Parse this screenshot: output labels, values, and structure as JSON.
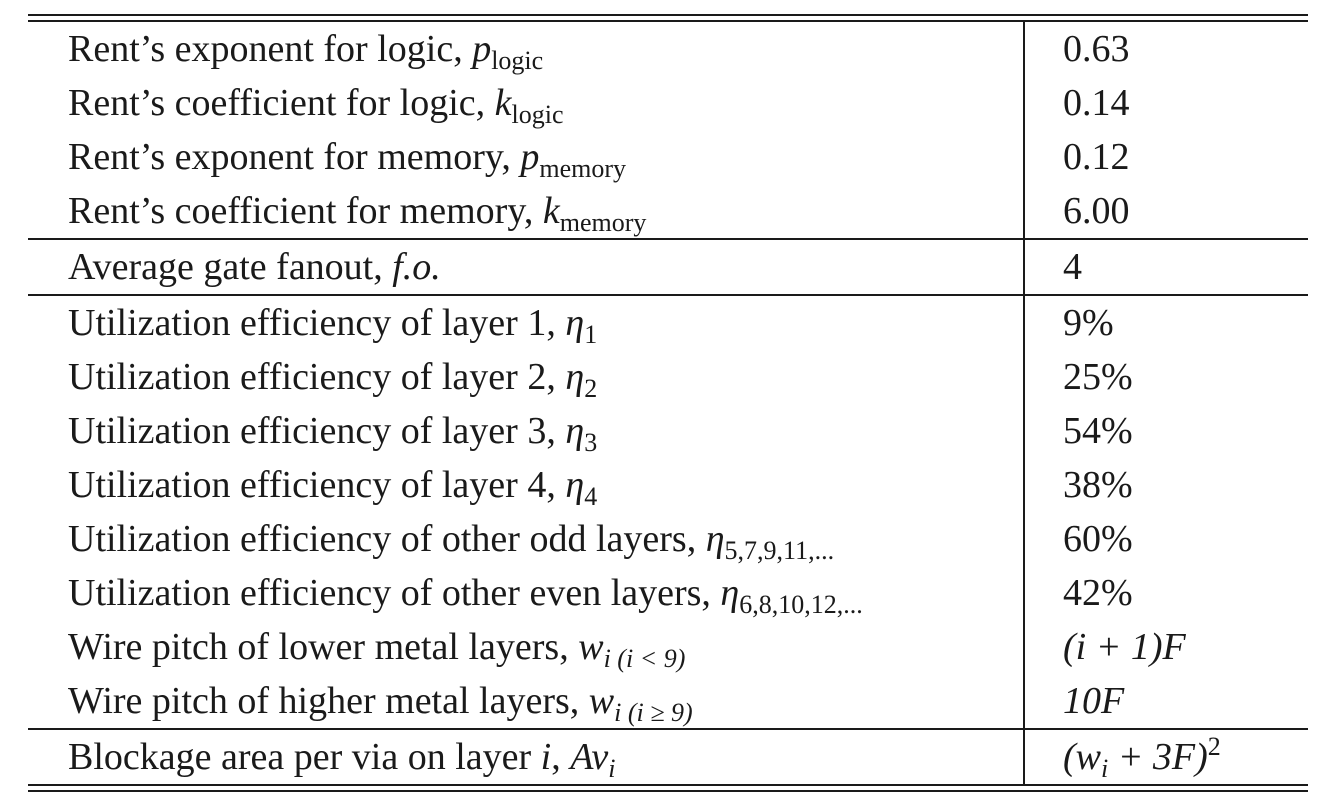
{
  "groups": [
    {
      "rows": [
        {
          "label": "Rent’s exponent for logic, ",
          "symbol": "p",
          "subscript": "logic",
          "value": "0.63"
        },
        {
          "label": "Rent’s coefficient for logic, ",
          "symbol": "k",
          "subscript": "logic",
          "value": "0.14"
        },
        {
          "label": "Rent’s exponent for memory, ",
          "symbol": "p",
          "subscript": "memory",
          "value": "0.12"
        },
        {
          "label": "Rent’s coefficient for memory, ",
          "symbol": "k",
          "subscript": "memory",
          "value": "6.00"
        }
      ]
    },
    {
      "rows": [
        {
          "label": "Average gate fanout, ",
          "symbol": "f.o.",
          "value": "4"
        }
      ]
    },
    {
      "rows": [
        {
          "label": "Utilization efficiency of layer 1, ",
          "symbol": "η",
          "subscript": "1",
          "value": "9%"
        },
        {
          "label": "Utilization efficiency of layer 2, ",
          "symbol": "η",
          "subscript": "2",
          "value": "25%"
        },
        {
          "label": "Utilization efficiency of layer 3, ",
          "symbol": "η",
          "subscript": "3",
          "value": "54%"
        },
        {
          "label": "Utilization efficiency of layer 4, ",
          "symbol": "η",
          "subscript": "4",
          "value": "38%"
        },
        {
          "label": "Utilization efficiency of other odd layers, ",
          "symbol": "η",
          "subscript": "5,7,9,11,...",
          "value": "60%"
        },
        {
          "label": "Utilization efficiency of other even layers, ",
          "symbol": "η",
          "subscript": "6,8,10,12,...",
          "value": "42%"
        },
        {
          "label": "Wire pitch of lower metal layers, ",
          "symbol": "w",
          "subscript": "i (i < 9)",
          "value": "(i + 1)F"
        },
        {
          "label": "Wire pitch of higher metal layers, ",
          "symbol": "w",
          "subscript": "i (i ≥ 9)",
          "value": "10F"
        }
      ]
    },
    {
      "rows": [
        {
          "label": "Blockage area per via on layer ",
          "symbol_mid": "i",
          "label_mid": ", ",
          "symbol": "Av",
          "subscript": "i",
          "value": "(w",
          "value_sub": "i",
          "value_tail": " + 3F)",
          "value_sup": "2"
        }
      ]
    }
  ]
}
